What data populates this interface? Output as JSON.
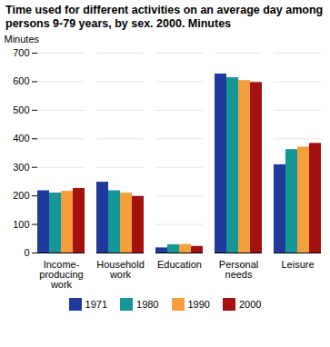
{
  "chart_data": {
    "type": "bar",
    "title": "Time used for different activities on an average day among persons 9-79 years, by sex. 2000. Minutes",
    "y_label": "Minutes",
    "categories": [
      "Income-producing work",
      "Household work",
      "Education",
      "Personal needs",
      "Leisure"
    ],
    "series": [
      {
        "name": "1971",
        "color": "#1f3a9c",
        "values": [
          218,
          248,
          18,
          627,
          309
        ]
      },
      {
        "name": "1980",
        "color": "#17969a",
        "values": [
          210,
          218,
          29,
          614,
          362
        ]
      },
      {
        "name": "1990",
        "color": "#f5a03c",
        "values": [
          216,
          210,
          30,
          604,
          371
        ]
      },
      {
        "name": "2000",
        "color": "#a3120f",
        "values": [
          226,
          198,
          23,
          597,
          384
        ]
      }
    ],
    "ylim": [
      0,
      700
    ],
    "yticks": [
      0,
      100,
      200,
      300,
      400,
      500,
      600,
      700
    ],
    "grid": true,
    "legend": "bottom"
  }
}
